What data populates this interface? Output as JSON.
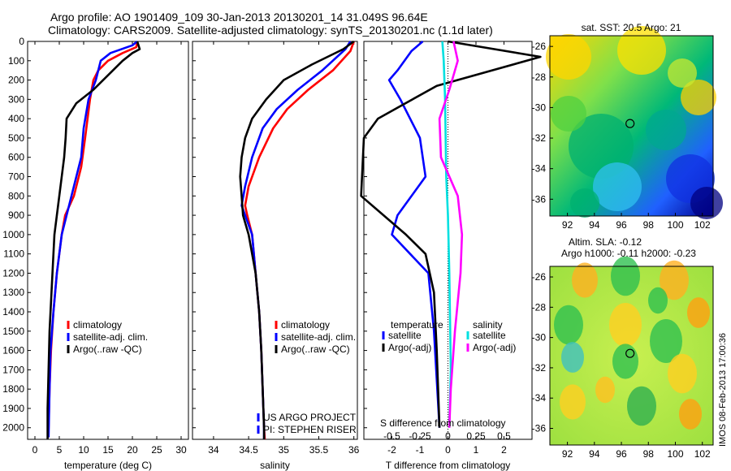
{
  "titles": {
    "line1": "Argo profile: AO 1901409_109 30-Jan-2013 20130201_14 31.049S 96.64E",
    "line2": "Climatology: CARS2009. Satellite-adjusted climatology: synTS_20130201.nc (1.1d later)"
  },
  "colors": {
    "climatology": "#ff0000",
    "satellite": "#0000ff",
    "argo": "#000000",
    "cyan": "#00e0e0",
    "magenta": "#ff00ff"
  },
  "chart_data": [
    {
      "type": "line",
      "name": "temperature",
      "xlabel": "temperature (deg C)",
      "xlim": [
        -1.5,
        31.5
      ],
      "ylim": [
        2060,
        0
      ],
      "xticks": [
        0,
        5,
        10,
        15,
        20,
        25,
        30
      ],
      "yticks": [
        0,
        100,
        200,
        300,
        400,
        500,
        600,
        700,
        800,
        900,
        1000,
        1100,
        1200,
        1300,
        1400,
        1500,
        1600,
        1700,
        1800,
        1900,
        2000
      ],
      "legend": [
        "climatology",
        "satellite-adj. clim.",
        "Argo(..raw -QC)"
      ],
      "series": [
        {
          "name": "climatology",
          "color": "#ff0000",
          "points": [
            [
              21,
              0
            ],
            [
              20.8,
              30
            ],
            [
              18,
              60
            ],
            [
              15,
              100
            ],
            [
              13,
              150
            ],
            [
              12,
              200
            ],
            [
              11.3,
              300
            ],
            [
              10.3,
              500
            ],
            [
              9.5,
              650
            ],
            [
              8,
              800
            ],
            [
              6.2,
              900
            ],
            [
              5.5,
              1000
            ],
            [
              4.5,
              1200
            ],
            [
              3.8,
              1400
            ],
            [
              3.3,
              1600
            ],
            [
              3,
              1800
            ],
            [
              2.8,
              2000
            ],
            [
              2.7,
              2050
            ]
          ]
        },
        {
          "name": "satellite-adj. clim.",
          "color": "#0000ff",
          "points": [
            [
              21,
              0
            ],
            [
              20,
              20
            ],
            [
              15.5,
              60
            ],
            [
              13.5,
              100
            ],
            [
              12.5,
              200
            ],
            [
              11,
              300
            ],
            [
              10,
              450
            ],
            [
              9.5,
              600
            ],
            [
              8.5,
              700
            ],
            [
              7.5,
              800
            ],
            [
              6.5,
              900
            ],
            [
              5.5,
              1000
            ],
            [
              4.5,
              1200
            ],
            [
              3.8,
              1400
            ],
            [
              3.2,
              1600
            ],
            [
              3,
              1800
            ],
            [
              2.8,
              2050
            ]
          ]
        },
        {
          "name": "Argo(..raw -QC)",
          "color": "#000000",
          "points": [
            [
              21,
              0
            ],
            [
              21.5,
              40
            ],
            [
              20,
              60
            ],
            [
              18,
              100
            ],
            [
              16,
              150
            ],
            [
              14,
              200
            ],
            [
              12,
              250
            ],
            [
              8.5,
              320
            ],
            [
              6.5,
              400
            ],
            [
              6.3,
              500
            ],
            [
              6,
              600
            ],
            [
              5.5,
              700
            ],
            [
              5,
              800
            ],
            [
              4.5,
              900
            ],
            [
              4,
              1000
            ],
            [
              3.8,
              1100
            ],
            [
              3.6,
              1200
            ],
            [
              3.4,
              1300
            ],
            [
              3.2,
              1400
            ],
            [
              3,
              1500
            ],
            [
              2.9,
              1600
            ],
            [
              2.8,
              1700
            ],
            [
              2.7,
              1800
            ],
            [
              2.6,
              1900
            ],
            [
              2.6,
              2000
            ],
            [
              2.6,
              2060
            ]
          ]
        }
      ]
    },
    {
      "type": "line",
      "name": "salinity",
      "xlabel": "salinity",
      "xlim": [
        33.7,
        36.05
      ],
      "ylim": [
        2060,
        0
      ],
      "xticks": [
        34,
        34.5,
        35,
        35.5,
        36
      ],
      "legend": [
        "climatology",
        "satellite-adj. clim.",
        "Argo(..raw -QC)"
      ],
      "credits": [
        "US ARGO PROJECT",
        "PI: STEPHEN RISER"
      ],
      "series": [
        {
          "name": "climatology",
          "color": "#ff0000",
          "points": [
            [
              36,
              0
            ],
            [
              35.95,
              50
            ],
            [
              35.7,
              150
            ],
            [
              35.35,
              250
            ],
            [
              35.05,
              350
            ],
            [
              34.85,
              450
            ],
            [
              34.65,
              600
            ],
            [
              34.5,
              750
            ],
            [
              34.45,
              850
            ],
            [
              34.48,
              900
            ],
            [
              34.55,
              1000
            ],
            [
              34.6,
              1200
            ],
            [
              34.65,
              1400
            ],
            [
              34.68,
              1600
            ],
            [
              34.7,
              1800
            ],
            [
              34.72,
              2000
            ],
            [
              34.73,
              2060
            ]
          ]
        },
        {
          "name": "satellite-adj. clim.",
          "color": "#0000ff",
          "points": [
            [
              35.95,
              0
            ],
            [
              35.88,
              40
            ],
            [
              35.55,
              150
            ],
            [
              35.2,
              250
            ],
            [
              34.9,
              350
            ],
            [
              34.7,
              450
            ],
            [
              34.55,
              600
            ],
            [
              34.45,
              750
            ],
            [
              34.4,
              850
            ],
            [
              34.45,
              900
            ],
            [
              34.55,
              1000
            ],
            [
              34.6,
              1200
            ],
            [
              34.65,
              1400
            ],
            [
              34.68,
              1600
            ],
            [
              34.7,
              1800
            ],
            [
              34.72,
              2000
            ],
            [
              34.72,
              2060
            ]
          ]
        },
        {
          "name": "Argo(..raw -QC)",
          "color": "#000000",
          "points": [
            [
              36,
              0
            ],
            [
              35.85,
              40
            ],
            [
              35.4,
              120
            ],
            [
              35,
              200
            ],
            [
              34.75,
              300
            ],
            [
              34.55,
              400
            ],
            [
              34.45,
              500
            ],
            [
              34.4,
              600
            ],
            [
              34.38,
              700
            ],
            [
              34.4,
              800
            ],
            [
              34.42,
              900
            ],
            [
              34.5,
              1000
            ],
            [
              34.6,
              1200
            ],
            [
              34.65,
              1400
            ],
            [
              34.68,
              1600
            ],
            [
              34.7,
              1800
            ],
            [
              34.72,
              2000
            ],
            [
              34.72,
              2060
            ]
          ]
        }
      ]
    },
    {
      "type": "line",
      "name": "difference",
      "xlabel": "T difference from climatology",
      "xlabel_top": "S difference from climatology",
      "xlim": [
        -3,
        3
      ],
      "ylim": [
        2060,
        0
      ],
      "xticks": [
        -2,
        -1,
        0,
        1,
        2
      ],
      "xticks_secondary": [
        -0.5,
        -0.25,
        0,
        0.25,
        0.5
      ],
      "xticks_secondary_labels": [
        "-0.5",
        "-0.25",
        "0",
        "0.25",
        "0.5"
      ],
      "legend_headers": [
        "temperature",
        "salinity"
      ],
      "legend": [
        "satellite",
        "Argo(-adj)",
        "satellite",
        "Argo(-adj)"
      ],
      "series": [
        {
          "name": "T satellite",
          "color": "#0000ff",
          "points": [
            [
              -0.9,
              0
            ],
            [
              -1.3,
              50
            ],
            [
              -1.8,
              150
            ],
            [
              -2.1,
              200
            ],
            [
              -1.7,
              300
            ],
            [
              -1.0,
              500
            ],
            [
              -0.8,
              700
            ],
            [
              -1.8,
              900
            ],
            [
              -2.0,
              1000
            ],
            [
              -0.7,
              1200
            ],
            [
              -0.5,
              1500
            ],
            [
              -0.3,
              2000
            ]
          ]
        },
        {
          "name": "T Argo(-adj)",
          "color": "#000000",
          "points": [
            [
              0,
              0
            ],
            [
              3.3,
              80
            ],
            [
              -0.4,
              230
            ],
            [
              -2.5,
              400
            ],
            [
              -3,
              500
            ],
            [
              -3.1,
              800
            ],
            [
              -1.5,
              1000
            ],
            [
              -0.8,
              1100
            ],
            [
              -0.5,
              1300
            ],
            [
              -0.4,
              1600
            ],
            [
              -0.3,
              2000
            ]
          ]
        },
        {
          "name": "S satellite",
          "color": "#00e0e0",
          "points": [
            [
              -0.2,
              0
            ],
            [
              -0.15,
              100
            ],
            [
              -0.1,
              300
            ],
            [
              -0.06,
              700
            ],
            [
              0,
              900
            ],
            [
              0.05,
              1200
            ],
            [
              0.08,
              1500
            ],
            [
              0.1,
              1700
            ],
            [
              0.05,
              2000
            ]
          ]
        },
        {
          "name": "S Argo(-adj)",
          "color": "#ff00ff",
          "points": [
            [
              0.2,
              0
            ],
            [
              0.35,
              100
            ],
            [
              0.05,
              250
            ],
            [
              -0.3,
              400
            ],
            [
              -0.25,
              600
            ],
            [
              0.35,
              800
            ],
            [
              0.5,
              1000
            ],
            [
              0.45,
              1200
            ],
            [
              0.25,
              1500
            ],
            [
              0.1,
              1800
            ],
            [
              0.05,
              2000
            ]
          ]
        }
      ]
    }
  ],
  "maps": [
    {
      "title": "sat. SST: 20.5 Argo: 21",
      "yticks": [
        "-26",
        "-28",
        "-30",
        "-32",
        "-34",
        "-36"
      ],
      "xticks": [
        "92",
        "94",
        "96",
        "98",
        "100",
        "102"
      ]
    },
    {
      "title_line1": "Altim. SLA: -0.12",
      "title_line2": "Argo h1000: -0.11 h2000: -0.23",
      "yticks": [
        "-26",
        "-28",
        "-30",
        "-32",
        "-34",
        "-36"
      ],
      "xticks": [
        "92",
        "94",
        "96",
        "98",
        "100",
        "102"
      ]
    }
  ],
  "footer": {
    "stamp": "IMOS 08-Feb-2013 17:00:36"
  }
}
